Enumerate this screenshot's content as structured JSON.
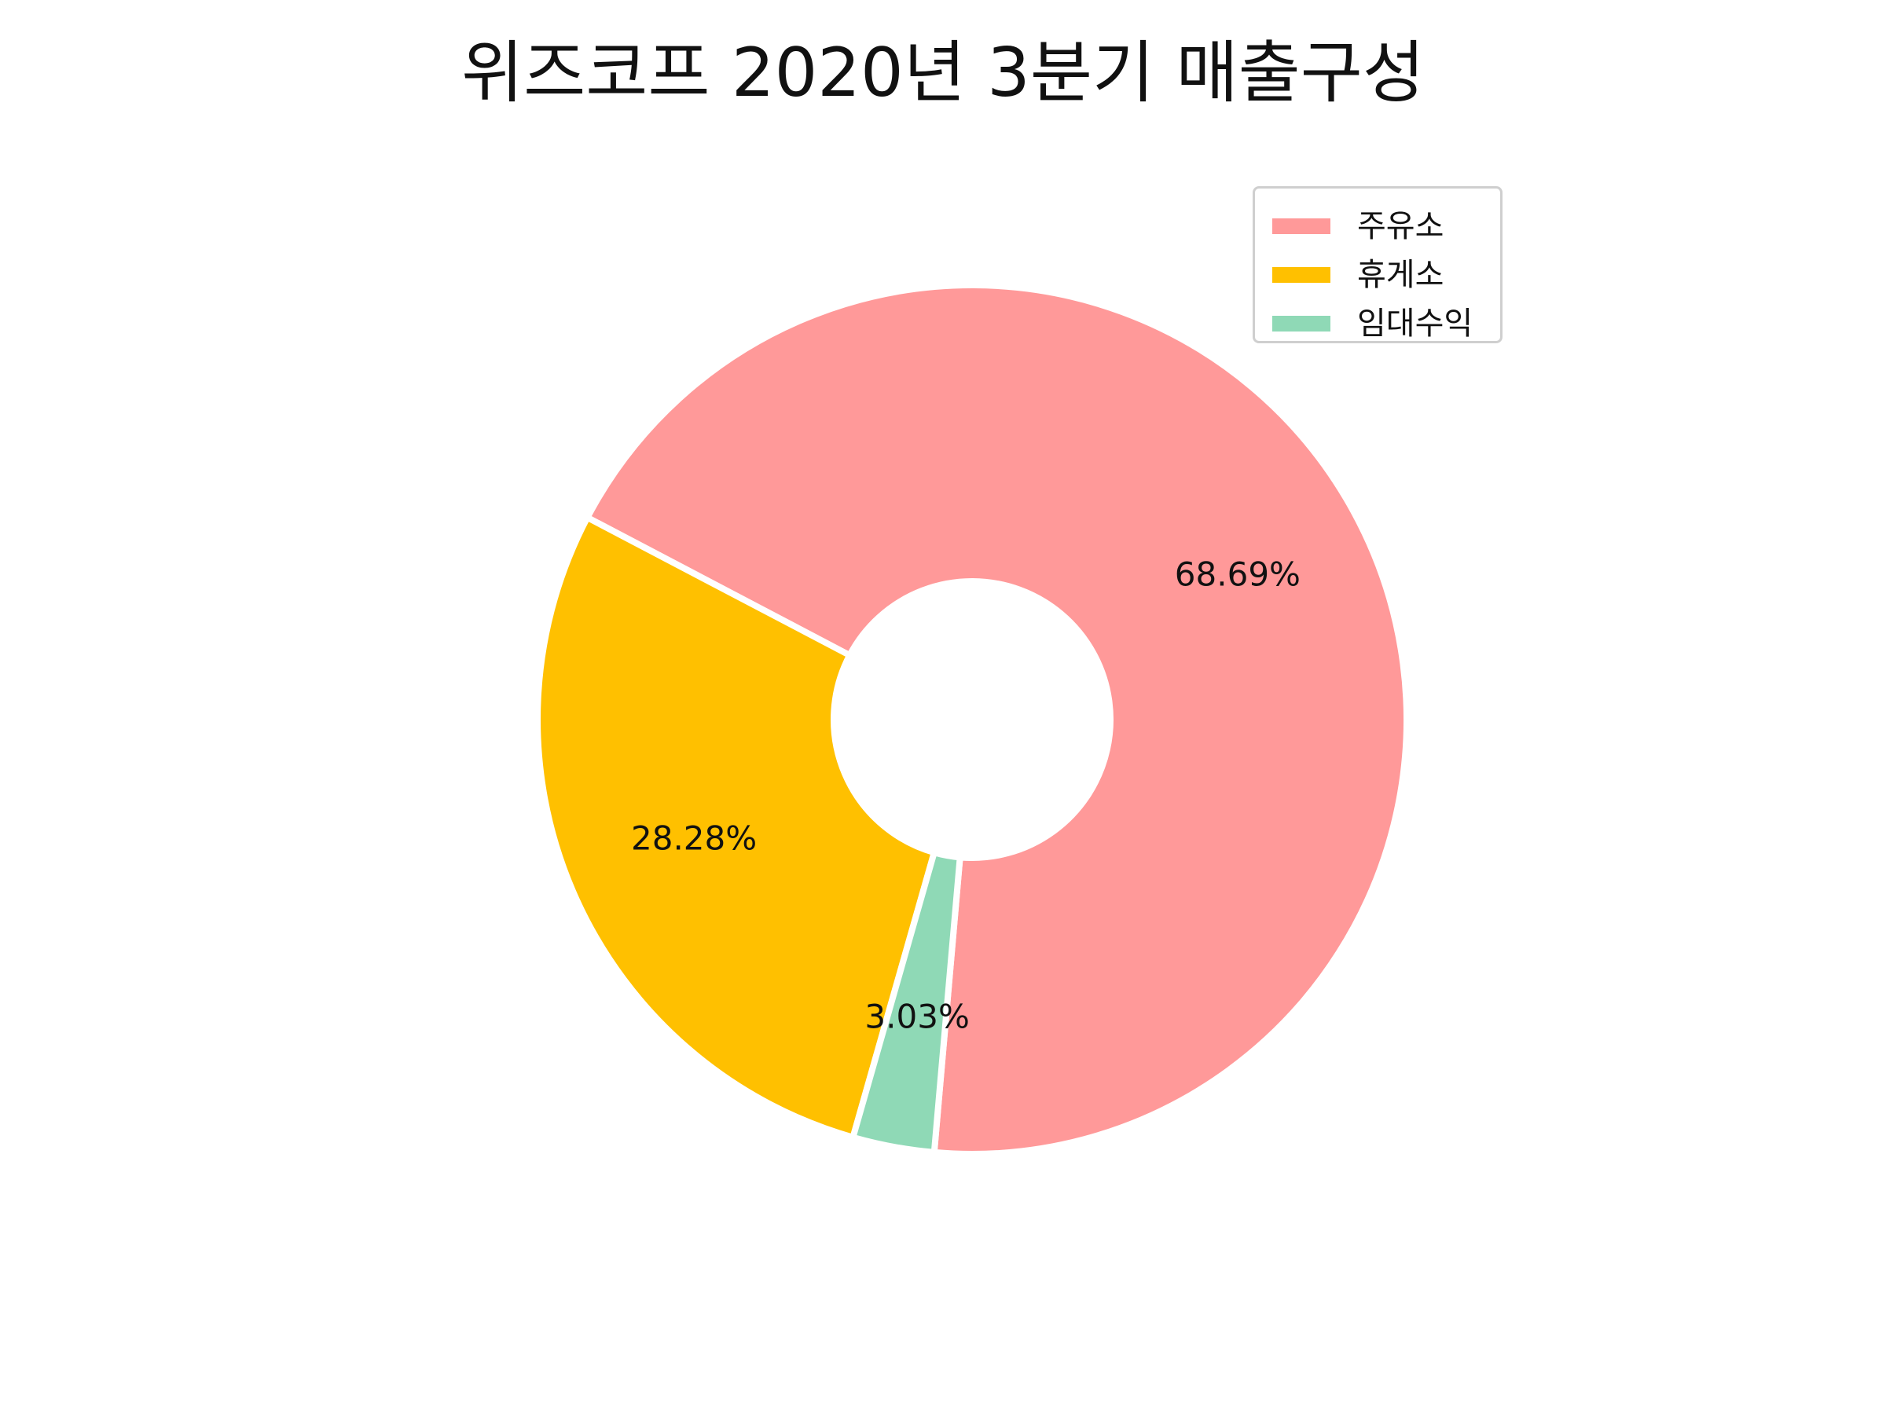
{
  "chart_data": {
    "type": "pie",
    "title": "위즈코프 2020년 3분기 매출구성",
    "donut": true,
    "legend_position": "top-right",
    "slices": [
      {
        "label": "주유소",
        "value": 68.69,
        "display": "68.69%",
        "color": "#ff9999"
      },
      {
        "label": "휴게소",
        "value": 28.28,
        "display": "28.28%",
        "color": "#ffc000"
      },
      {
        "label": "임대수익",
        "value": 3.03,
        "display": "3.03%",
        "color": "#8fd9b6"
      }
    ]
  }
}
